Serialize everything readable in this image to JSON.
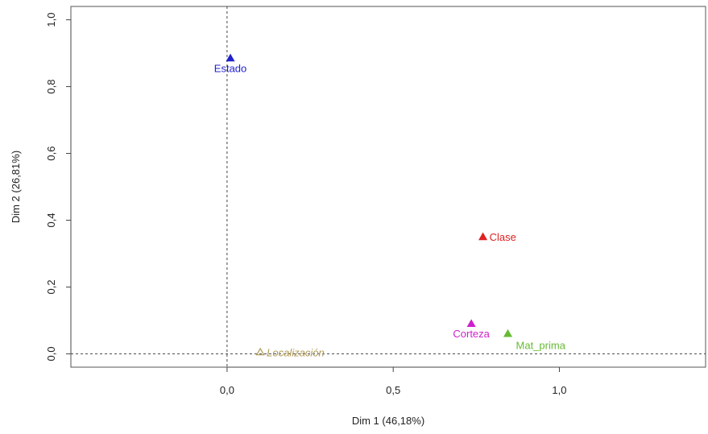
{
  "chart_data": {
    "type": "scatter",
    "title": "",
    "xlabel": "Dim 1 (46,18%)",
    "ylabel": "Dim 2 (26,81%)",
    "xlim": [
      -0.47,
      1.44
    ],
    "ylim": [
      -0.04,
      1.04
    ],
    "x_ticks": [
      0.0,
      0.5,
      1.0
    ],
    "x_tick_labels": [
      "0,0",
      "0,5",
      "1,0"
    ],
    "y_ticks": [
      0.0,
      0.2,
      0.4,
      0.6,
      0.8,
      1.0
    ],
    "y_tick_labels": [
      "0,0",
      "0,2",
      "0,4",
      "0,6",
      "0,8",
      "1,0"
    ],
    "reference_lines": {
      "x": 0,
      "y": 0,
      "style": "dashed"
    },
    "grid": false,
    "points": [
      {
        "label": "Estado",
        "x": 0.01,
        "y": 0.885,
        "color": "#2222cc",
        "marker": "filled-triangle",
        "label_pos": "below"
      },
      {
        "label": "Clase",
        "x": 0.77,
        "y": 0.35,
        "color": "#dd2222",
        "marker": "filled-triangle",
        "label_pos": "right"
      },
      {
        "label": "Corteza",
        "x": 0.735,
        "y": 0.09,
        "color": "#cc22cc",
        "marker": "filled-triangle",
        "label_pos": "below"
      },
      {
        "label": "Mat_prima",
        "x": 0.845,
        "y": 0.06,
        "color": "#66bb33",
        "marker": "filled-triangle",
        "label_pos": "below-right"
      },
      {
        "label": "Localización",
        "x": 0.1,
        "y": 0.005,
        "color": "#b09a55",
        "marker": "open-triangle",
        "label_pos": "right",
        "italic": true
      }
    ]
  }
}
